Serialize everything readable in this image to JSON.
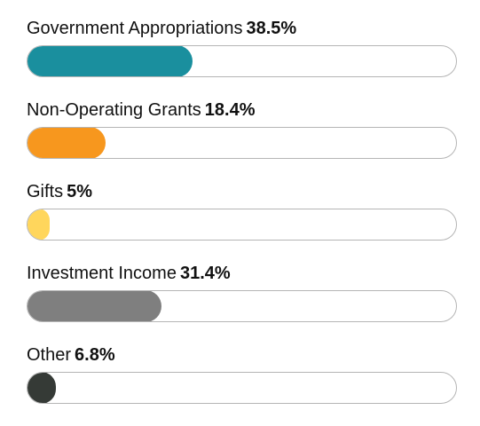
{
  "chart_data": {
    "type": "bar",
    "orientation": "horizontal-progress",
    "title": "",
    "xlabel": "",
    "ylabel": "",
    "ylim": [
      0,
      100
    ],
    "categories": [
      "Government Appropriations",
      "Non-Operating Grants",
      "Gifts",
      "Investment Income",
      "Other"
    ],
    "values": [
      38.5,
      18.4,
      5,
      31.4,
      6.8
    ],
    "value_labels": [
      "38.5%",
      "18.4%",
      "5%",
      "31.4%",
      "6.8%"
    ],
    "colors": [
      "#1a8f9e",
      "#f7971e",
      "#ffd65c",
      "#7f7f7f",
      "#353a36"
    ],
    "track_color": "#ffffff",
    "track_border": "#b5b5b5"
  }
}
